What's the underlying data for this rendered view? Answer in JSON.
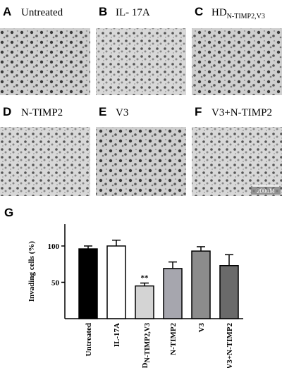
{
  "panels": [
    {
      "letter": "A",
      "label": "Untreated"
    },
    {
      "letter": "B",
      "label": "IL- 17A"
    },
    {
      "letter": "C",
      "label": "HD",
      "sub": "N-TIMP2,V3"
    },
    {
      "letter": "D",
      "label": "N-TIMP2"
    },
    {
      "letter": "E",
      "label": "V3"
    },
    {
      "letter": "F",
      "label": "V3+N-TIMP2"
    }
  ],
  "scale_bar": "200uM",
  "chart_data": {
    "type": "bar",
    "panel_letter": "G",
    "y_label": "Invading cells (%)",
    "categories": [
      "Untreated",
      "IL-17A",
      "HD",
      "N-TIMP2",
      "V3",
      "V3+N-TIMP2"
    ],
    "category_subscripts": [
      null,
      null,
      "N-TIMP2,V3",
      null,
      null,
      null
    ],
    "values": [
      96,
      100,
      45,
      69,
      93,
      73
    ],
    "errors": [
      4,
      8,
      4,
      9,
      6,
      15
    ],
    "colors": [
      "#000000",
      "#ffffff",
      "#d4d4d4",
      "#a6a6ae",
      "#8c8c8c",
      "#6a6a6a"
    ],
    "annotations": [
      null,
      null,
      "**",
      null,
      null,
      null
    ],
    "ylim": [
      0,
      130
    ],
    "yticks": [
      50,
      100
    ]
  }
}
